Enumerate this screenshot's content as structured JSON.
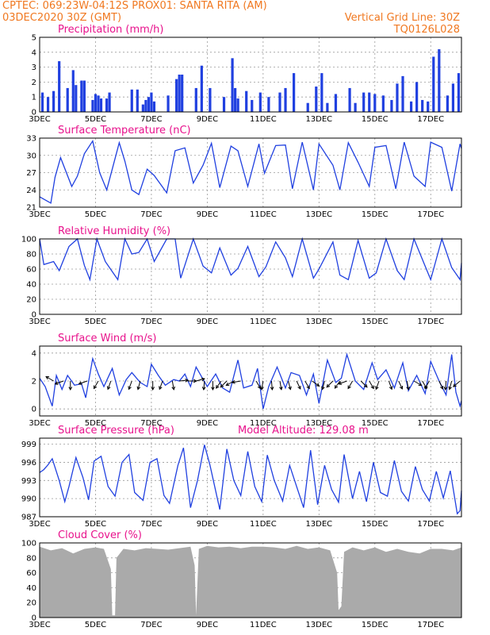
{
  "header": {
    "line1_left": "CPTEC:   069:23W-04:12S   PROX01: SANTA RITA (AM)",
    "line2_left": "03DEC2020 30Z (GMT)",
    "line2_right": "Vertical Grid Line: 30Z",
    "line3_right": "TQ0126L028"
  },
  "colors": {
    "header": "#f07820",
    "title": "#e8128c",
    "series": "#2040e0",
    "cloud": "#aaaaaa"
  },
  "chart_data": [
    {
      "type": "bar",
      "title": "Precipitation (mm/h)",
      "x_tick_labels": [
        "3DEC",
        "5DEC",
        "7DEC",
        "9DEC",
        "11DEC",
        "13DEC",
        "15DEC",
        "17DEC"
      ],
      "x_range_days": [
        3,
        18.1
      ],
      "ylim": [
        0,
        5
      ],
      "yticks": [
        "0",
        "1",
        "2",
        "3",
        "4",
        "5"
      ],
      "ytick_values": [
        0,
        1,
        2,
        3,
        4,
        5
      ],
      "grid": true,
      "x": [
        3.1,
        3.3,
        3.5,
        3.7,
        4.0,
        4.2,
        4.3,
        4.5,
        4.6,
        4.9,
        5.0,
        5.1,
        5.2,
        5.4,
        5.5,
        6.3,
        6.5,
        6.7,
        6.8,
        6.9,
        7.0,
        7.1,
        7.6,
        7.9,
        8.0,
        8.1,
        8.6,
        8.8,
        9.1,
        9.6,
        9.9,
        10.0,
        10.1,
        10.4,
        10.6,
        10.9,
        11.2,
        11.6,
        11.8,
        12.1,
        12.6,
        12.9,
        13.1,
        13.3,
        13.6,
        14.1,
        14.3,
        14.6,
        14.8,
        15.0,
        15.3,
        15.6,
        15.8,
        16.0,
        16.3,
        16.5,
        16.7,
        16.9,
        17.1,
        17.3,
        17.6,
        17.8,
        18.0
      ],
      "values": [
        1.3,
        1.0,
        1.4,
        3.4,
        1.6,
        2.8,
        1.8,
        2.1,
        2.1,
        0.8,
        1.2,
        1.1,
        0.9,
        0.9,
        1.3,
        1.5,
        1.5,
        0.5,
        0.8,
        1.0,
        1.3,
        0.7,
        1.1,
        2.2,
        2.5,
        2.5,
        1.6,
        3.1,
        1.6,
        1.0,
        3.6,
        1.6,
        0.9,
        1.4,
        0.8,
        1.3,
        1.0,
        1.3,
        1.6,
        2.6,
        0.6,
        1.7,
        2.6,
        0.6,
        1.2,
        1.6,
        0.6,
        1.3,
        1.3,
        1.2,
        1.1,
        0.8,
        1.9,
        2.4,
        0.7,
        2.0,
        0.8,
        0.7,
        3.7,
        4.2,
        1.1,
        1.9,
        2.6
      ]
    },
    {
      "type": "line",
      "title": "Surface Temperature (nC)",
      "x_tick_labels": [
        "3DEC",
        "5DEC",
        "7DEC",
        "9DEC",
        "11DEC",
        "13DEC",
        "15DEC",
        "17DEC"
      ],
      "x_range_days": [
        3,
        18.1
      ],
      "ylim": [
        21,
        33
      ],
      "yticks": [
        "21",
        "24",
        "27",
        "30",
        "33"
      ],
      "ytick_values": [
        21,
        24,
        27,
        30,
        33
      ],
      "grid": true,
      "x": [
        3.0,
        3.4,
        3.55,
        3.75,
        4.15,
        4.35,
        4.6,
        4.9,
        5.15,
        5.4,
        5.85,
        6.05,
        6.3,
        6.55,
        6.85,
        7.1,
        7.55,
        7.85,
        8.2,
        8.5,
        8.85,
        9.15,
        9.45,
        9.85,
        10.1,
        10.45,
        10.85,
        11.05,
        11.45,
        11.8,
        12.05,
        12.4,
        12.8,
        13.0,
        13.5,
        13.75,
        14.05,
        14.4,
        14.8,
        15.0,
        15.4,
        15.75,
        16.05,
        16.4,
        16.8,
        17.0,
        17.4,
        17.75,
        18.05,
        18.1
      ],
      "values": [
        22.8,
        21.7,
        26.2,
        29.6,
        24.6,
        26.4,
        30.3,
        32.5,
        27.0,
        24.0,
        32.2,
        29.0,
        24.0,
        23.2,
        27.6,
        26.5,
        23.5,
        30.8,
        31.3,
        25.2,
        28.3,
        32.1,
        24.4,
        31.6,
        30.8,
        24.6,
        32.0,
        26.9,
        31.7,
        31.8,
        24.2,
        32.3,
        24.0,
        32.0,
        28.3,
        24.0,
        32.2,
        28.8,
        24.6,
        31.4,
        31.7,
        24.2,
        32.3,
        26.4,
        24.6,
        32.3,
        31.4,
        23.8,
        32.0,
        31.2
      ]
    },
    {
      "type": "line",
      "title": "Relative Humidity (%)",
      "x_tick_labels": [
        "3DEC",
        "5DEC",
        "7DEC",
        "9DEC",
        "11DEC",
        "13DEC",
        "15DEC",
        "17DEC"
      ],
      "x_range_days": [
        3,
        18.1
      ],
      "ylim": [
        0,
        100
      ],
      "yticks": [
        "0",
        "20",
        "40",
        "60",
        "80",
        "100"
      ],
      "ytick_values": [
        0,
        20,
        40,
        60,
        80,
        100
      ],
      "grid": true,
      "x": [
        3.0,
        3.15,
        3.5,
        3.7,
        4.05,
        4.35,
        4.6,
        4.8,
        5.05,
        5.35,
        5.8,
        6.05,
        6.3,
        6.55,
        6.85,
        7.1,
        7.55,
        7.85,
        8.05,
        8.5,
        8.85,
        9.15,
        9.45,
        9.85,
        10.1,
        10.45,
        10.85,
        11.1,
        11.45,
        11.8,
        12.05,
        12.4,
        12.8,
        13.0,
        13.5,
        13.75,
        14.05,
        14.4,
        14.8,
        15.05,
        15.4,
        15.8,
        16.05,
        16.4,
        16.8,
        17.0,
        17.4,
        17.75,
        18.05,
        18.1
      ],
      "values": [
        100,
        66,
        70,
        58,
        90,
        100,
        65,
        46,
        100,
        70,
        46,
        100,
        80,
        82,
        100,
        70,
        100,
        100,
        48,
        100,
        64,
        55,
        88,
        52,
        61,
        90,
        50,
        63,
        96,
        75,
        50,
        100,
        48,
        60,
        96,
        52,
        46,
        98,
        48,
        55,
        100,
        58,
        46,
        100,
        64,
        46,
        100,
        62,
        46,
        68
      ]
    },
    {
      "type": "line",
      "title": "Surface Wind (m/s)",
      "x_tick_labels": [
        "3DEC",
        "5DEC",
        "7DEC",
        "9DEC",
        "11DEC",
        "13DEC",
        "15DEC",
        "17DEC"
      ],
      "x_range_days": [
        3,
        18.1
      ],
      "ylim": [
        -0.5,
        4.5
      ],
      "yticks": [
        "0",
        "2",
        "4"
      ],
      "ytick_values": [
        0,
        2,
        4
      ],
      "grid": true,
      "x": [
        3.0,
        3.2,
        3.45,
        3.6,
        3.8,
        4.0,
        4.25,
        4.5,
        4.65,
        4.9,
        5.1,
        5.3,
        5.6,
        5.85,
        6.1,
        6.3,
        6.6,
        6.85,
        7.0,
        7.25,
        7.5,
        7.8,
        8.0,
        8.2,
        8.4,
        8.6,
        8.8,
        9.0,
        9.3,
        9.55,
        9.8,
        10.1,
        10.3,
        10.6,
        10.8,
        11.0,
        11.2,
        11.5,
        11.8,
        12.0,
        12.3,
        12.55,
        12.8,
        13.0,
        13.3,
        13.6,
        13.8,
        14.0,
        14.3,
        14.6,
        14.9,
        15.1,
        15.4,
        15.7,
        16.0,
        16.2,
        16.5,
        16.8,
        17.0,
        17.3,
        17.55,
        17.75,
        17.9,
        18.05,
        18.1
      ],
      "values": [
        2.2,
        1.6,
        0.2,
        2.4,
        1.4,
        2.4,
        1.7,
        1.8,
        0.8,
        3.6,
        2.5,
        1.6,
        2.9,
        1.0,
        2.1,
        2.6,
        1.9,
        1.6,
        3.2,
        2.4,
        1.7,
        2.1,
        2.0,
        2.5,
        1.6,
        3.0,
        2.3,
        1.6,
        2.5,
        1.5,
        1.2,
        3.5,
        1.5,
        1.7,
        2.9,
        0.0,
        1.6,
        3.0,
        1.5,
        2.6,
        2.4,
        1.0,
        2.5,
        0.4,
        3.5,
        1.9,
        2.2,
        3.9,
        2.0,
        1.4,
        3.3,
        2.1,
        2.8,
        1.5,
        3.3,
        1.3,
        2.4,
        1.1,
        3.4,
        2.0,
        1.0,
        3.9,
        1.2,
        0.2,
        0.6
      ],
      "arrow_x": [
        3.5,
        3.85,
        4.1,
        4.7,
        5.1,
        5.55,
        6.3,
        6.6,
        7.05,
        7.4,
        7.75,
        8.0,
        8.3,
        8.6,
        8.9,
        9.2,
        9.5,
        9.7,
        9.95,
        10.2,
        10.75,
        11.0,
        11.3,
        11.6,
        11.9,
        12.2,
        12.5,
        12.75,
        13.2,
        13.5,
        13.75,
        14.0,
        14.2,
        14.5,
        14.8,
        15.15,
        15.5,
        15.85,
        16.15,
        16.4,
        16.7,
        16.95,
        17.3,
        17.55,
        17.75,
        18.05
      ],
      "arrow_dir_deg": [
        300,
        250,
        180,
        250,
        210,
        200,
        200,
        195,
        180,
        200,
        170,
        85,
        90,
        75,
        185,
        180,
        215,
        225,
        240,
        260,
        150,
        190,
        175,
        170,
        165,
        155,
        150,
        125,
        195,
        225,
        215,
        250,
        210,
        135,
        150,
        200,
        160,
        155,
        170,
        120,
        150,
        210,
        155,
        185,
        195,
        230
      ]
    },
    {
      "type": "line",
      "title": "Surface Pressure (hPa)",
      "annotation": "Model Altitude: 129.08 m",
      "x_tick_labels": [
        "3DEC",
        "5DEC",
        "7DEC",
        "9DEC",
        "11DEC",
        "13DEC",
        "15DEC",
        "17DEC"
      ],
      "x_range_days": [
        3,
        18.1
      ],
      "ylim": [
        987,
        1000
      ],
      "yticks": [
        "987",
        "990",
        "993",
        "996",
        "999"
      ],
      "ytick_values": [
        987,
        990,
        993,
        996,
        999
      ],
      "grid": true,
      "x": [
        3.0,
        3.15,
        3.3,
        3.45,
        3.7,
        3.9,
        4.05,
        4.3,
        4.55,
        4.75,
        4.95,
        5.2,
        5.45,
        5.7,
        5.95,
        6.2,
        6.4,
        6.7,
        6.95,
        7.2,
        7.45,
        7.65,
        7.95,
        8.15,
        8.4,
        8.65,
        8.9,
        9.1,
        9.45,
        9.7,
        9.95,
        10.2,
        10.45,
        10.7,
        10.95,
        11.15,
        11.4,
        11.7,
        11.95,
        12.2,
        12.45,
        12.7,
        12.95,
        13.2,
        13.45,
        13.7,
        13.9,
        14.2,
        14.45,
        14.7,
        14.95,
        15.2,
        15.45,
        15.7,
        15.95,
        16.2,
        16.45,
        16.7,
        16.95,
        17.2,
        17.45,
        17.7,
        17.95,
        18.05,
        18.1
      ],
      "values": [
        994.3,
        994.8,
        995.6,
        996.6,
        993.0,
        989.5,
        992.0,
        996.8,
        993.5,
        989.8,
        996.2,
        997.0,
        992.0,
        990.4,
        996.0,
        997.3,
        991.0,
        989.7,
        996.0,
        996.6,
        990.5,
        989.2,
        995.5,
        998.4,
        988.5,
        993.0,
        998.9,
        995.5,
        988.2,
        998.2,
        993.0,
        990.5,
        997.8,
        992.0,
        989.5,
        997.2,
        993.0,
        989.6,
        995.5,
        992.0,
        988.5,
        998.0,
        989.0,
        995.5,
        991.5,
        989.4,
        997.3,
        990.0,
        994.5,
        989.5,
        996.0,
        991.0,
        990.4,
        996.3,
        991.2,
        989.6,
        995.3,
        991.5,
        989.6,
        994.5,
        990.1,
        994.6,
        987.5,
        988.0,
        991.3
      ]
    },
    {
      "type": "area",
      "title": "Cloud Cover (%)",
      "x_tick_labels": [
        "3DEC",
        "5DEC",
        "7DEC",
        "9DEC",
        "11DEC",
        "13DEC",
        "15DEC",
        "17DEC"
      ],
      "x_range_days": [
        3,
        18.1
      ],
      "ylim": [
        0,
        100
      ],
      "yticks": [
        "0",
        "20",
        "40",
        "60",
        "80",
        "100"
      ],
      "ytick_values": [
        0,
        20,
        40,
        60,
        80,
        100
      ],
      "grid": true,
      "x": [
        3.0,
        3.4,
        3.8,
        4.2,
        4.6,
        5.0,
        5.3,
        5.55,
        5.6,
        5.7,
        5.75,
        6.0,
        6.4,
        6.8,
        7.2,
        7.6,
        8.0,
        8.4,
        8.55,
        8.6,
        8.7,
        9.0,
        9.4,
        9.8,
        10.2,
        10.6,
        11.0,
        11.4,
        11.8,
        12.2,
        12.6,
        13.0,
        13.4,
        13.65,
        13.7,
        13.8,
        13.9,
        14.2,
        14.6,
        15.0,
        15.4,
        15.8,
        16.2,
        16.6,
        17.0,
        17.4,
        17.8,
        18.1
      ],
      "values": [
        95,
        90,
        93,
        86,
        92,
        94,
        92,
        65,
        3,
        3,
        80,
        92,
        90,
        93,
        92,
        91,
        93,
        95,
        70,
        3,
        92,
        96,
        94,
        95,
        93,
        95,
        95,
        94,
        92,
        96,
        92,
        94,
        90,
        60,
        10,
        15,
        88,
        94,
        90,
        94,
        88,
        92,
        88,
        86,
        92,
        92,
        90,
        94
      ]
    }
  ]
}
